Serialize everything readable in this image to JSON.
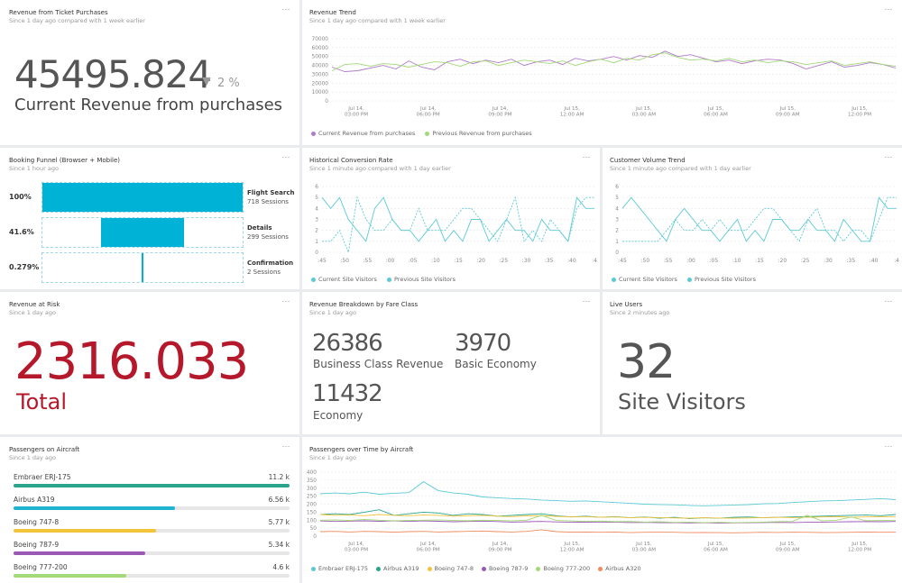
{
  "colors": {
    "cyan": "#00b3d6",
    "purple": "#b07cc6",
    "light_green": "#a3d977",
    "teal": "#2aa58c",
    "dark_red": "#b5182b",
    "line_teal": "#5bcad6"
  },
  "more_icon": "⋯",
  "revenue_tickets": {
    "title": "Revenue from Ticket Purchases",
    "subtitle": "Since 1 day ago compared with 1 week earlier",
    "value": "45495.824",
    "delta_arrow": "▼",
    "delta": "2 %",
    "label": "Current Revenue from purchases"
  },
  "revenue_trend": {
    "title": "Revenue Trend",
    "subtitle": "Since 1 day ago compared with 1 week earlier",
    "legend": [
      "Current Revenue from purchases",
      "Previous Revenue from purchases"
    ],
    "chart_data": {
      "type": "line",
      "y_ticks": [
        "70000",
        "60000",
        "50000",
        "40000",
        "30000",
        "20000",
        "10000",
        "0"
      ],
      "ylim": [
        0,
        70000
      ],
      "x_ticks": [
        [
          "Jul 14,",
          "03:00 PM"
        ],
        [
          "Jul 14,",
          "06:00 PM"
        ],
        [
          "Jul 14,",
          "09:00 PM"
        ],
        [
          "Jul 15,",
          "12:00 AM"
        ],
        [
          "Jul 15,",
          "03:00 AM"
        ],
        [
          "Jul 15,",
          "06:00 AM"
        ],
        [
          "Jul 15,",
          "09:00 AM"
        ],
        [
          "Jul 15,",
          "12:00 PM"
        ]
      ],
      "series": [
        {
          "name": "Current Revenue from purchases",
          "color": "#b07cc6",
          "values": [
            38000,
            33000,
            34000,
            37000,
            40000,
            36000,
            45000,
            38000,
            35000,
            44000,
            47000,
            42000,
            46000,
            43000,
            47000,
            40000,
            44000,
            46000,
            41000,
            48000,
            45000,
            47000,
            50000,
            46000,
            51000,
            49000,
            56000,
            50000,
            52000,
            48000,
            44000,
            46000,
            42000,
            45000,
            47000,
            46000,
            42000,
            36000,
            40000,
            44000,
            38000,
            40000,
            43000,
            41000,
            37000
          ]
        },
        {
          "name": "Previous Revenue from purchases",
          "color": "#a3d977",
          "values": [
            34000,
            41000,
            42000,
            39000,
            42000,
            41000,
            38000,
            41000,
            44000,
            43000,
            39000,
            44000,
            45000,
            40000,
            43000,
            46000,
            44000,
            42000,
            45000,
            40000,
            44000,
            47000,
            43000,
            48000,
            46000,
            52000,
            54000,
            49000,
            46000,
            47000,
            45000,
            48000,
            44000,
            46000,
            43000,
            45000,
            44000,
            41000,
            43000,
            45000,
            40000,
            42000,
            44000,
            41000,
            39000
          ]
        }
      ]
    }
  },
  "booking_funnel": {
    "title": "Booking Funnel (Browser + Mobile)",
    "subtitle": "Since 1 hour ago",
    "stages": [
      {
        "pct": "100%",
        "name": "Flight Search",
        "sessions": "718 Sessions",
        "fraction": 1.0
      },
      {
        "pct": "41.6%",
        "name": "Details",
        "sessions": "299 Sessions",
        "fraction": 0.416
      },
      {
        "pct": "0.279%",
        "name": "Confirmation",
        "sessions": "2 Sessions",
        "fraction": 0.00279
      }
    ]
  },
  "conversion": {
    "title": "Historical Conversion Rate",
    "subtitle": "Since 1 minute ago compared with 1 day earlier",
    "legend": [
      "Current Site Visitors",
      "Previous Site Visitors"
    ],
    "chart_data": {
      "type": "line",
      "y_ticks": [
        "6",
        "5",
        "4",
        "3",
        "2",
        "1",
        "0"
      ],
      "ylim": [
        0,
        6
      ],
      "x_ticks": [
        ":45",
        ":50",
        ":55",
        ":00",
        ":05",
        ":10",
        ":15",
        ":20",
        ":25",
        ":30",
        ":35",
        ":40",
        ":4"
      ],
      "series": [
        {
          "name": "Current Site Visitors",
          "color": "#5bcad6",
          "dashed": false,
          "values": [
            5,
            4,
            5,
            3,
            2,
            1,
            4,
            5,
            3,
            2,
            2,
            1,
            2,
            3,
            1,
            2,
            1,
            3,
            3,
            1,
            2,
            3,
            2,
            2,
            1,
            3,
            2,
            2,
            1,
            5,
            4,
            4
          ]
        },
        {
          "name": "Previous Site Visitors",
          "color": "#5bcad6",
          "dashed": true,
          "values": [
            1,
            1,
            2,
            0,
            5,
            3,
            2,
            2,
            3,
            2,
            2,
            4,
            2,
            2,
            2,
            3,
            4,
            4,
            3,
            2,
            1,
            3,
            5,
            1,
            2,
            1,
            3,
            2,
            1,
            4,
            5,
            5
          ]
        }
      ]
    }
  },
  "customer_volume": {
    "title": "Customer Volume Trend",
    "subtitle": "Since 1 minute ago compared with 1 day earlier",
    "legend": [
      "Current Site Visitors",
      "Previous Site Visitors"
    ],
    "chart_data": {
      "type": "line",
      "y_ticks": [
        "6",
        "5",
        "4",
        "3",
        "2",
        "1",
        "0"
      ],
      "ylim": [
        0,
        6
      ],
      "x_ticks": [
        ":45",
        ":50",
        ":55",
        ":00",
        ":05",
        ":10",
        ":15",
        ":20",
        ":25",
        ":30",
        ":35",
        ":40",
        ":4"
      ],
      "series": [
        {
          "name": "Current Site Visitors",
          "color": "#5bcad6",
          "dashed": false,
          "values": [
            4,
            5,
            4,
            3,
            2,
            1,
            3,
            4,
            3,
            2,
            2,
            1,
            2,
            3,
            1,
            2,
            1,
            3,
            3,
            2,
            2,
            3,
            2,
            2,
            1,
            3,
            2,
            1,
            1,
            5,
            4,
            4
          ]
        },
        {
          "name": "Previous Site Visitors",
          "color": "#5bcad6",
          "dashed": true,
          "values": [
            1,
            1,
            1,
            1,
            1,
            2,
            3,
            2,
            2,
            3,
            2,
            3,
            2,
            2,
            2,
            3,
            4,
            4,
            3,
            2,
            1,
            3,
            4,
            2,
            2,
            1,
            2,
            2,
            1,
            3,
            5,
            5
          ]
        }
      ]
    }
  },
  "revenue_risk": {
    "title": "Revenue at Risk",
    "subtitle": "Since 1 day ago",
    "value": "2316.033",
    "label": "Total"
  },
  "fare_class": {
    "title": "Revenue Breakdown by Fare Class",
    "subtitle": "Since 1 day ago",
    "items": [
      {
        "value": "26386",
        "label": "Business Class Revenue"
      },
      {
        "value": "3970",
        "label": "Basic Economy"
      },
      {
        "value": "11432",
        "label": "Economy"
      }
    ]
  },
  "live_users": {
    "title": "Live Users",
    "subtitle": "Since 2 minutes ago",
    "value": "32",
    "label": "Site Visitors"
  },
  "passengers_aircraft": {
    "title": "Passengers on Aircraft",
    "subtitle": "Since 1 day ago",
    "rows": [
      {
        "name": "Embraer ERJ-175",
        "value": "11.2 k",
        "fraction": 1.0,
        "color": "#2aa58c"
      },
      {
        "name": "Airbus A319",
        "value": "6.56 k",
        "fraction": 0.586,
        "color": "#1fb5d0"
      },
      {
        "name": "Boeing 747-8",
        "value": "5.77 k",
        "fraction": 0.515,
        "color": "#f3c33a"
      },
      {
        "name": "Boeing 787-9",
        "value": "5.34 k",
        "fraction": 0.477,
        "color": "#9b59b6"
      },
      {
        "name": "Boeing 777-200",
        "value": "4.6 k",
        "fraction": 0.41,
        "color": "#a3d977"
      }
    ]
  },
  "passengers_time": {
    "title": "Passengers over Time by Aircraft",
    "subtitle": "Since 1 day ago",
    "legend": [
      "Embraer ERJ-175",
      "Airbus A319",
      "Boeing 747-8",
      "Boeing 787-9",
      "Boeing 777-200",
      "Airbus A320"
    ],
    "chart_data": {
      "type": "line",
      "y_ticks": [
        "400",
        "350",
        "300",
        "250",
        "200",
        "150",
        "100",
        "50",
        "0"
      ],
      "ylim": [
        0,
        400
      ],
      "x_ticks": [
        [
          "Jul 14,",
          "03:00 PM"
        ],
        [
          "Jul 14,",
          "06:00 PM"
        ],
        [
          "Jul 14,",
          "09:00 PM"
        ],
        [
          "Jul 15,",
          "12:00 AM"
        ],
        [
          "Jul 15,",
          "03:00 AM"
        ],
        [
          "Jul 15,",
          "06:00 AM"
        ],
        [
          "Jul 15,",
          "09:00 AM"
        ],
        [
          "Jul 15,",
          "12:00 PM"
        ]
      ],
      "series": [
        {
          "name": "Embraer ERJ-175",
          "color": "#5bcad6",
          "values": [
            265,
            270,
            265,
            275,
            262,
            268,
            272,
            340,
            285,
            270,
            262,
            245,
            240,
            235,
            232,
            226,
            222,
            218,
            220,
            215,
            210,
            205,
            200,
            198,
            196,
            192,
            190,
            192,
            195,
            197,
            202,
            204,
            210,
            215,
            220,
            222,
            226,
            230,
            235,
            228
          ]
        },
        {
          "name": "Airbus A319",
          "color": "#2aa58c",
          "values": [
            135,
            140,
            135,
            150,
            165,
            130,
            140,
            150,
            145,
            130,
            140,
            135,
            125,
            130,
            135,
            140,
            128,
            120,
            125,
            118,
            122,
            115,
            120,
            112,
            118,
            110,
            115,
            112,
            118,
            120,
            115,
            118,
            120,
            122,
            125,
            128,
            130,
            132,
            128,
            135
          ]
        },
        {
          "name": "Boeing 747-8",
          "color": "#f3c33a",
          "values": [
            135,
            130,
            132,
            128,
            135,
            130,
            128,
            132,
            130,
            125,
            128,
            130,
            125,
            122,
            126,
            128,
            124,
            120,
            122,
            118,
            120,
            115,
            118,
            116,
            114,
            112,
            115,
            113,
            112,
            114,
            116,
            118,
            116,
            118,
            120,
            122,
            118,
            120,
            122,
            120
          ]
        },
        {
          "name": "Boeing 787-9",
          "color": "#9b59b6",
          "values": [
            95,
            92,
            94,
            96,
            93,
            95,
            92,
            95,
            93,
            90,
            92,
            94,
            91,
            88,
            90,
            92,
            89,
            87,
            88,
            86,
            88,
            85,
            86,
            84,
            85,
            83,
            84,
            82,
            83,
            84,
            85,
            86,
            85,
            87,
            88,
            89,
            90,
            91,
            90,
            92
          ]
        },
        {
          "name": "Boeing 777-200",
          "color": "#a3d977",
          "values": [
            100,
            102,
            98,
            105,
            100,
            95,
            98,
            100,
            102,
            98,
            96,
            100,
            98,
            95,
            100,
            130,
            98,
            95,
            92,
            94,
            90,
            92,
            88,
            90,
            86,
            88,
            85,
            87,
            84,
            86,
            88,
            90,
            92,
            130,
            95,
            100,
            120,
            96,
            98,
            100
          ]
        },
        {
          "name": "Airbus A320",
          "color": "#f08a5d",
          "values": [
            28,
            30,
            26,
            30,
            28,
            25,
            28,
            30,
            26,
            28,
            30,
            32,
            28,
            26,
            30,
            40,
            28,
            25,
            26,
            24,
            26,
            22,
            24,
            25,
            24,
            22,
            23,
            22,
            21,
            22,
            24,
            23,
            25,
            24,
            22,
            23,
            24,
            26,
            24,
            25
          ]
        }
      ]
    }
  }
}
